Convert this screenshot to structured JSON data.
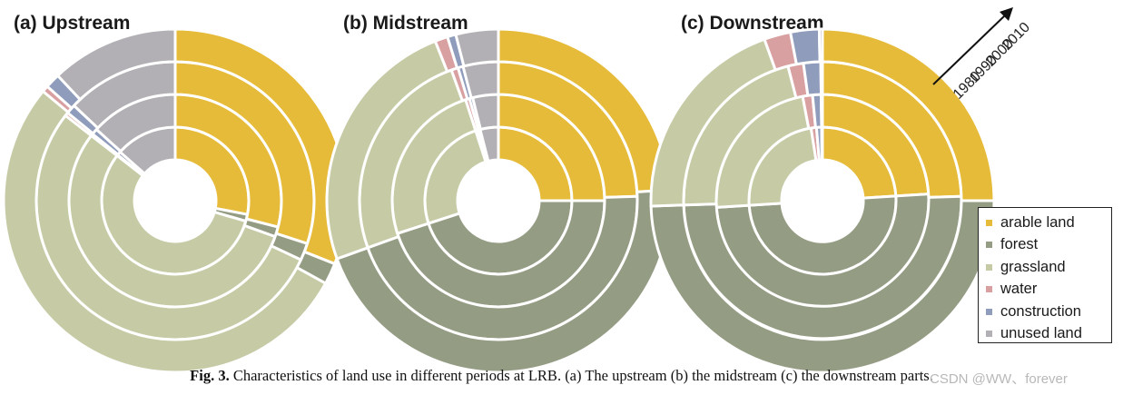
{
  "colors": {
    "arable land": "#e6bb3a",
    "forest": "#949c84",
    "grassland": "#c6cba6",
    "water": "#d9a0a2",
    "construction": "#8f9cbb",
    "unused land": "#b2b0b5"
  },
  "year_arrow": {
    "icon": "arrow-up-right-icon",
    "labels": [
      "2010",
      "2000",
      "1990",
      "1980"
    ]
  },
  "legend": {
    "items": [
      {
        "label": "arable land"
      },
      {
        "label": "forest"
      },
      {
        "label": "grassland"
      },
      {
        "label": "water"
      },
      {
        "label": "construction"
      },
      {
        "label": "unused land"
      }
    ]
  },
  "caption": {
    "fig_label": "Fig. 3.",
    "text": "Characteristics of land use in different periods at LRB. (a) The upstream (b) the midstream (c) the downstream parts."
  },
  "watermark": "CSDN @WW、forever",
  "chart_data": [
    {
      "type": "pie",
      "subtype": "nested-donut",
      "title": "(a) Upstream",
      "rings": [
        "1980",
        "1990",
        "2000",
        "2010"
      ],
      "ring_order": "inner-to-outer",
      "categories": [
        "arable land",
        "forest",
        "grassland",
        "water",
        "construction",
        "unused land"
      ],
      "series": [
        {
          "name": "1980",
          "values": [
            28.0,
            1.5,
            56.0,
            0.2,
            0.8,
            13.5
          ]
        },
        {
          "name": "1990",
          "values": [
            29.0,
            1.5,
            55.0,
            0.3,
            0.9,
            13.3
          ]
        },
        {
          "name": "2000",
          "values": [
            30.0,
            2.0,
            53.5,
            0.4,
            1.1,
            13.0
          ]
        },
        {
          "name": "2010",
          "values": [
            31.0,
            2.0,
            53.0,
            0.6,
            1.4,
            12.0
          ]
        }
      ]
    },
    {
      "type": "pie",
      "subtype": "nested-donut",
      "title": "(b) Midstream",
      "rings": [
        "1980",
        "1990",
        "2000",
        "2010"
      ],
      "ring_order": "inner-to-outer",
      "categories": [
        "arable land",
        "forest",
        "grassland",
        "water",
        "construction",
        "unused land"
      ],
      "series": [
        {
          "name": "1980",
          "values": [
            25.0,
            45.0,
            25.0,
            0.5,
            0.5,
            4.0
          ]
        },
        {
          "name": "1990",
          "values": [
            25.0,
            45.0,
            25.0,
            0.6,
            0.5,
            3.9
          ]
        },
        {
          "name": "2000",
          "values": [
            24.5,
            45.0,
            25.0,
            0.8,
            0.6,
            4.1
          ]
        },
        {
          "name": "2010",
          "values": [
            24.0,
            45.5,
            24.5,
            1.2,
            0.8,
            4.0
          ]
        }
      ]
    },
    {
      "type": "pie",
      "subtype": "nested-donut",
      "title": "(c) Downstream",
      "rings": [
        "1980",
        "1990",
        "2000",
        "2010"
      ],
      "ring_order": "inner-to-outer",
      "categories": [
        "arable land",
        "forest",
        "grassland",
        "water",
        "construction",
        "unused land"
      ],
      "series": [
        {
          "name": "1980",
          "values": [
            24.0,
            50.0,
            23.5,
            1.2,
            1.1,
            0.2
          ]
        },
        {
          "name": "1990",
          "values": [
            24.0,
            50.0,
            23.0,
            1.5,
            1.3,
            0.2
          ]
        },
        {
          "name": "2000",
          "values": [
            24.5,
            50.0,
            21.5,
            1.8,
            2.0,
            0.2
          ]
        },
        {
          "name": "2010",
          "values": [
            25.0,
            49.5,
            20.0,
            2.5,
            2.7,
            0.3
          ]
        }
      ]
    }
  ]
}
